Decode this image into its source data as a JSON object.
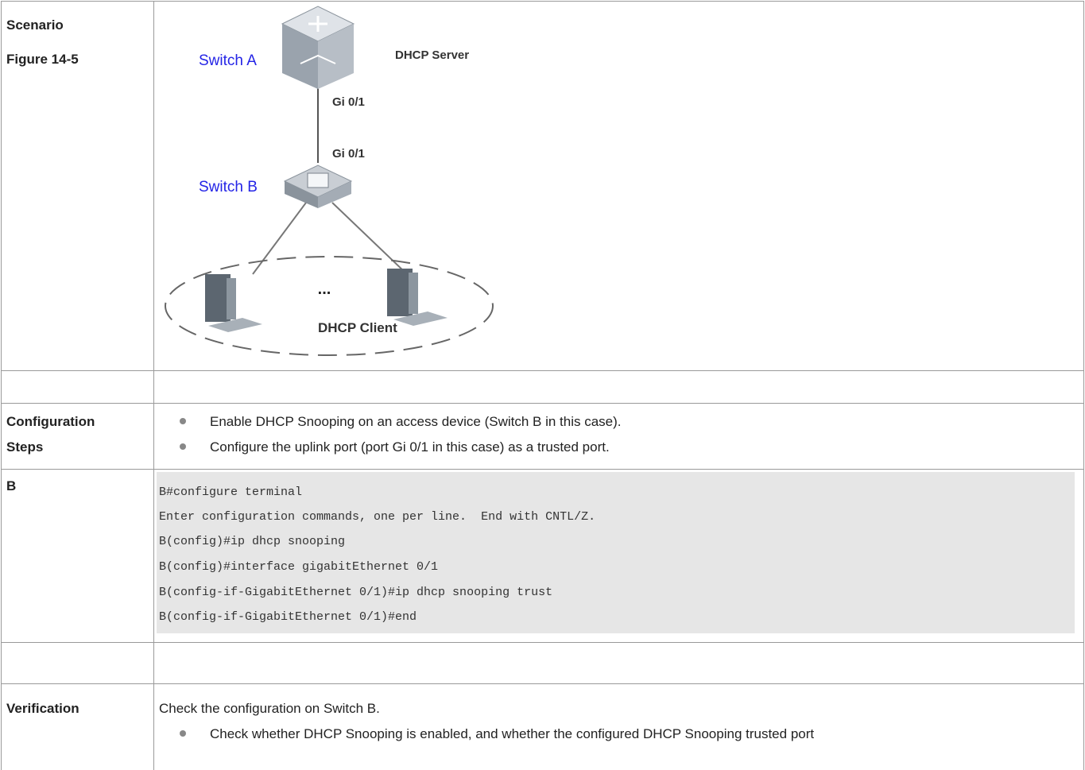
{
  "scenario": {
    "label": [
      "Scenario",
      "Figure 14-5"
    ],
    "figure": {
      "switch_a": "Switch A",
      "server": "DHCP Server",
      "port_a": "Gi 0/1",
      "port_b": "Gi 0/1",
      "switch_b": "Switch B",
      "ellipsis": "...",
      "client": "DHCP Client"
    }
  },
  "configuration_steps": {
    "label": [
      "Configuration",
      "Steps"
    ],
    "items": [
      "Enable DHCP Snooping on an access device (Switch B in this case).",
      "Configure the uplink port (port Gi 0/1 in this case) as a trusted port."
    ]
  },
  "b": {
    "label": "B",
    "code": [
      "B#configure terminal",
      "Enter configuration commands, one per line.  End with CNTL/Z.",
      "B(config)#ip dhcp snooping",
      "B(config)#interface gigabitEthernet 0/1",
      "B(config-if-GigabitEthernet 0/1)#ip dhcp snooping trust",
      "B(config-if-GigabitEthernet 0/1)#end"
    ]
  },
  "verification": {
    "label": "Verification",
    "text": "Check the configuration on Switch B.",
    "items": [
      "Check whether DHCP Snooping is enabled, and whether the configured DHCP Snooping trusted port"
    ]
  }
}
